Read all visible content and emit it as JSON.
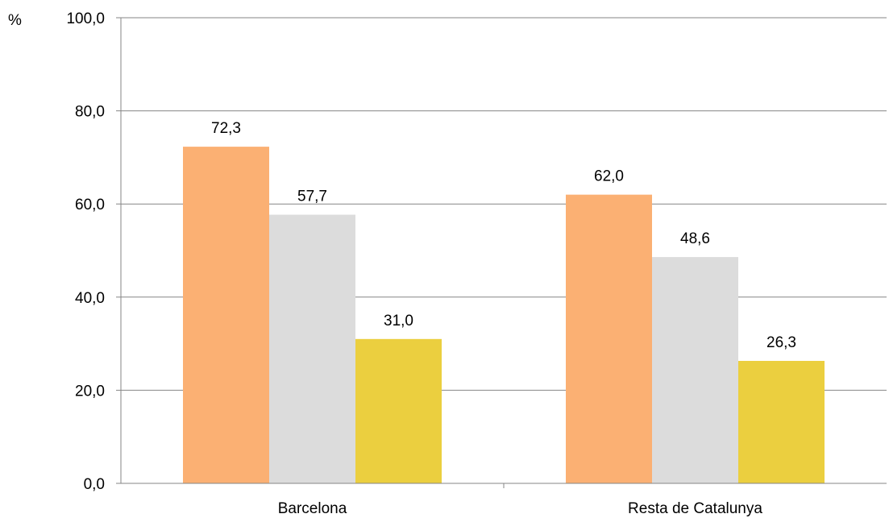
{
  "chart_data": {
    "type": "bar",
    "title": "",
    "xlabel": "",
    "ylabel": "%",
    "categories": [
      "Barcelona",
      "Resta de Catalunya"
    ],
    "series": [
      {
        "values": [
          72.3,
          62.0
        ],
        "color": "#FBB073"
      },
      {
        "values": [
          57.7,
          48.6
        ],
        "color": "#DCDCDC"
      },
      {
        "values": [
          31.0,
          26.3
        ],
        "color": "#EBCF3F"
      }
    ],
    "data_labels": [
      [
        "72,3",
        "62,0"
      ],
      [
        "57,7",
        "48,6"
      ],
      [
        "31,0",
        "26,3"
      ]
    ],
    "ylim": [
      0,
      100
    ],
    "y_ticks": [
      0,
      20,
      40,
      60,
      80,
      100
    ],
    "y_tick_labels": [
      "0,0",
      "20,0",
      "40,0",
      "60,0",
      "80,0",
      "100,0"
    ],
    "grid": "horizontal",
    "legend": "none",
    "axis_color": "#868686",
    "grid_color": "#868686"
  }
}
